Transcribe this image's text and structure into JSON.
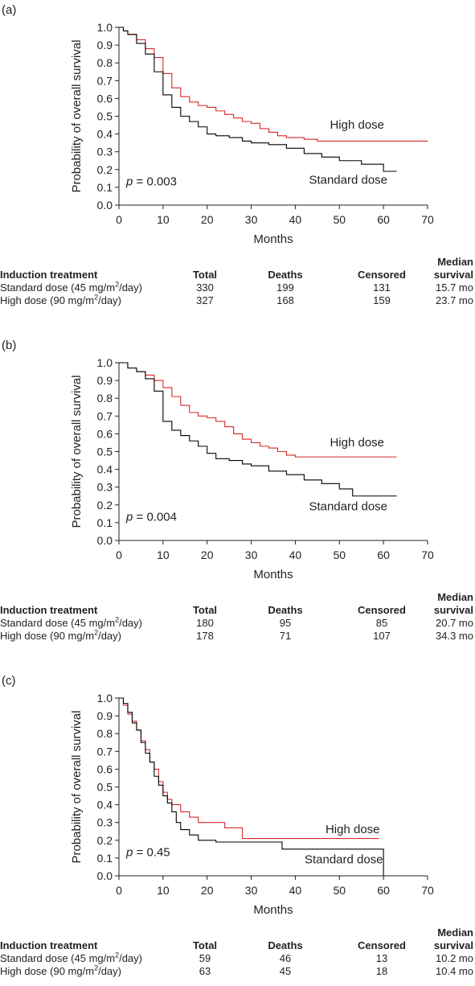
{
  "chart_data": [
    {
      "panel_label": "(a)",
      "type": "line",
      "xlabel": "Months",
      "ylabel": "Probability of overall survival",
      "xlim": [
        0,
        70
      ],
      "ylim": [
        0,
        1.0
      ],
      "xticks": [
        0,
        10,
        20,
        30,
        40,
        50,
        60,
        70
      ],
      "yticks": [
        0.0,
        0.1,
        0.2,
        0.3,
        0.4,
        0.5,
        0.6,
        0.7,
        0.8,
        0.9,
        1.0
      ],
      "p_value": "0.003",
      "series": [
        {
          "name": "High dose",
          "color": "#d62728",
          "x": [
            0,
            1,
            2,
            4,
            6,
            8,
            10,
            12,
            14,
            16,
            18,
            20,
            22,
            24,
            26,
            28,
            30,
            32,
            34,
            36,
            38,
            40,
            42,
            45,
            50,
            55,
            60,
            65,
            70
          ],
          "y": [
            1.0,
            0.98,
            0.96,
            0.93,
            0.88,
            0.83,
            0.74,
            0.66,
            0.61,
            0.58,
            0.56,
            0.55,
            0.53,
            0.51,
            0.49,
            0.47,
            0.46,
            0.43,
            0.41,
            0.39,
            0.38,
            0.38,
            0.37,
            0.36,
            0.36,
            0.36,
            0.36,
            0.36,
            0.36
          ]
        },
        {
          "name": "Standard dose",
          "color": "#000000",
          "x": [
            0,
            1,
            2,
            4,
            6,
            8,
            10,
            12,
            14,
            16,
            18,
            20,
            22,
            25,
            28,
            30,
            34,
            38,
            42,
            46,
            50,
            55,
            60,
            63
          ],
          "y": [
            1.0,
            0.98,
            0.96,
            0.91,
            0.85,
            0.75,
            0.62,
            0.55,
            0.5,
            0.47,
            0.44,
            0.4,
            0.39,
            0.38,
            0.36,
            0.35,
            0.34,
            0.32,
            0.29,
            0.27,
            0.25,
            0.23,
            0.19,
            0.19
          ]
        }
      ],
      "labels": [
        {
          "text": "High dose",
          "x": 54,
          "y": 0.43
        },
        {
          "text": "Standard dose",
          "x": 52,
          "y": 0.12
        }
      ],
      "table": {
        "headers": [
          "Induction treatment",
          "Total",
          "Deaths",
          "Censored"
        ],
        "median_header": [
          "Median",
          "survival"
        ],
        "unit_sup": "2",
        "rows": [
          {
            "pre": "Standard dose (45 mg/m",
            "post": "/day)",
            "total": "330",
            "deaths": "199",
            "censored": "131",
            "median": "15.7 mo"
          },
          {
            "pre": "High dose (90 mg/m",
            "post": "/day)",
            "total": "327",
            "deaths": "168",
            "censored": "159",
            "median": "23.7 mo"
          }
        ]
      }
    },
    {
      "panel_label": "(b)",
      "type": "line",
      "xlabel": "Months",
      "ylabel": "Probability of overall survival",
      "xlim": [
        0,
        70
      ],
      "ylim": [
        0,
        1.0
      ],
      "xticks": [
        0,
        10,
        20,
        30,
        40,
        50,
        60,
        70
      ],
      "yticks": [
        0.0,
        0.1,
        0.2,
        0.3,
        0.4,
        0.5,
        0.6,
        0.7,
        0.8,
        0.9,
        1.0
      ],
      "p_value": "0.004",
      "series": [
        {
          "name": "High dose",
          "color": "#d62728",
          "x": [
            0,
            2,
            4,
            6,
            8,
            10,
            12,
            14,
            16,
            18,
            20,
            22,
            24,
            26,
            28,
            30,
            32,
            34,
            36,
            38,
            40,
            45,
            50,
            55,
            60,
            63
          ],
          "y": [
            1.0,
            0.97,
            0.95,
            0.93,
            0.9,
            0.86,
            0.81,
            0.76,
            0.72,
            0.7,
            0.69,
            0.67,
            0.64,
            0.6,
            0.57,
            0.55,
            0.53,
            0.52,
            0.5,
            0.48,
            0.47,
            0.47,
            0.47,
            0.47,
            0.47,
            0.47
          ]
        },
        {
          "name": "Standard dose",
          "color": "#000000",
          "x": [
            0,
            2,
            4,
            6,
            8,
            10,
            12,
            14,
            16,
            18,
            20,
            22,
            25,
            28,
            30,
            34,
            38,
            42,
            46,
            50,
            53,
            56,
            60,
            63
          ],
          "y": [
            1.0,
            0.97,
            0.95,
            0.91,
            0.84,
            0.67,
            0.62,
            0.59,
            0.56,
            0.53,
            0.49,
            0.46,
            0.45,
            0.43,
            0.42,
            0.39,
            0.37,
            0.34,
            0.32,
            0.29,
            0.25,
            0.25,
            0.25,
            0.25
          ]
        }
      ],
      "labels": [
        {
          "text": "High dose",
          "x": 54,
          "y": 0.53
        },
        {
          "text": "Standard dose",
          "x": 52,
          "y": 0.17
        }
      ],
      "table": {
        "headers": [
          "Induction treatment",
          "Total",
          "Deaths",
          "Censored"
        ],
        "median_header": [
          "Median",
          "survival"
        ],
        "unit_sup": "2",
        "rows": [
          {
            "pre": "Standard dose (45 mg/m",
            "post": "/day)",
            "total": "180",
            "deaths": "95",
            "censored": "85",
            "median": "20.7 mo"
          },
          {
            "pre": "High dose (90 mg/m",
            "post": "/day)",
            "total": "178",
            "deaths": "71",
            "censored": "107",
            "median": "34.3 mo"
          }
        ]
      }
    },
    {
      "panel_label": "(c)",
      "type": "line",
      "xlabel": "Months",
      "ylabel": "Probability of overall survival",
      "xlim": [
        0,
        70
      ],
      "ylim": [
        0,
        1.0
      ],
      "xticks": [
        0,
        10,
        20,
        30,
        40,
        50,
        60,
        70
      ],
      "yticks": [
        0.0,
        0.1,
        0.2,
        0.3,
        0.4,
        0.5,
        0.6,
        0.7,
        0.8,
        0.9,
        1.0
      ],
      "p_value": "0.45",
      "series": [
        {
          "name": "High dose",
          "color": "#d62728",
          "x": [
            0,
            1,
            2,
            3,
            4,
            5,
            6,
            7,
            8,
            9,
            10,
            11,
            12,
            14,
            16,
            18,
            20,
            24,
            28,
            30,
            40,
            50,
            59
          ],
          "y": [
            1.0,
            0.96,
            0.91,
            0.87,
            0.82,
            0.76,
            0.71,
            0.64,
            0.6,
            0.53,
            0.47,
            0.43,
            0.4,
            0.36,
            0.33,
            0.3,
            0.3,
            0.27,
            0.21,
            0.21,
            0.21,
            0.21,
            0.21
          ]
        },
        {
          "name": "Standard dose",
          "color": "#000000",
          "x": [
            0,
            1,
            2,
            3,
            4,
            5,
            6,
            7,
            8,
            9,
            10,
            11,
            12,
            13,
            14,
            16,
            18,
            22,
            30,
            37,
            45,
            55,
            60,
            60
          ],
          "y": [
            1.0,
            0.97,
            0.92,
            0.86,
            0.82,
            0.75,
            0.69,
            0.64,
            0.56,
            0.51,
            0.45,
            0.41,
            0.36,
            0.3,
            0.26,
            0.23,
            0.2,
            0.19,
            0.19,
            0.15,
            0.15,
            0.15,
            0.15,
            0.0
          ]
        }
      ],
      "labels": [
        {
          "text": "High dose",
          "x": 53,
          "y": 0.24
        },
        {
          "text": "Standard dose",
          "x": 51,
          "y": 0.07
        }
      ],
      "table": {
        "headers": [
          "Induction treatment",
          "Total",
          "Deaths",
          "Censored"
        ],
        "median_header": [
          "Median",
          "survival"
        ],
        "unit_sup": "2",
        "rows": [
          {
            "pre": "Standard dose (45 mg/m",
            "post": "/day)",
            "total": "59",
            "deaths": "46",
            "censored": "13",
            "median": "10.2 mo"
          },
          {
            "pre": "High dose (90 mg/m",
            "post": "/day)",
            "total": "63",
            "deaths": "45",
            "censored": "18",
            "median": "10.4 mo"
          }
        ]
      }
    }
  ]
}
